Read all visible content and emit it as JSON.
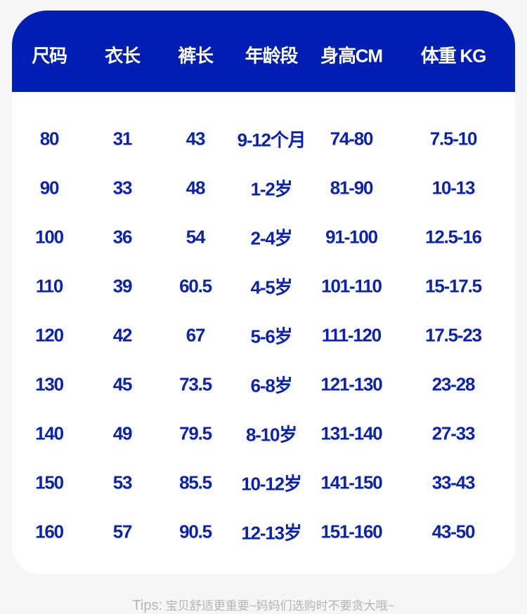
{
  "table": {
    "headers": [
      "尺码",
      "衣长",
      "裤长",
      "年龄段",
      "身高CM",
      "体重 KG"
    ],
    "rows": [
      [
        "80",
        "31",
        "43",
        "9-12个月",
        "74-80",
        "7.5-10"
      ],
      [
        "90",
        "33",
        "48",
        "1-2岁",
        "81-90",
        "10-13"
      ],
      [
        "100",
        "36",
        "54",
        "2-4岁",
        "91-100",
        "12.5-16"
      ],
      [
        "110",
        "39",
        "60.5",
        "4-5岁",
        "101-110",
        "15-17.5"
      ],
      [
        "120",
        "42",
        "67",
        "5-6岁",
        "111-120",
        "17.5-23"
      ],
      [
        "130",
        "45",
        "73.5",
        "6-8岁",
        "121-130",
        "23-28"
      ],
      [
        "140",
        "49",
        "79.5",
        "8-10岁",
        "131-140",
        "27-33"
      ],
      [
        "150",
        "53",
        "85.5",
        "10-12岁",
        "141-150",
        "33-43"
      ],
      [
        "160",
        "57",
        "90.5",
        "12-13岁",
        "151-160",
        "43-50"
      ]
    ]
  },
  "tips": {
    "label": "Tips:",
    "text": " 宝贝舒适更重要~妈妈们选购时不要贪大哦~"
  },
  "colors": {
    "header_bg": "#001eb4",
    "text": "#0b22b0",
    "background": "#f6f6f6"
  }
}
